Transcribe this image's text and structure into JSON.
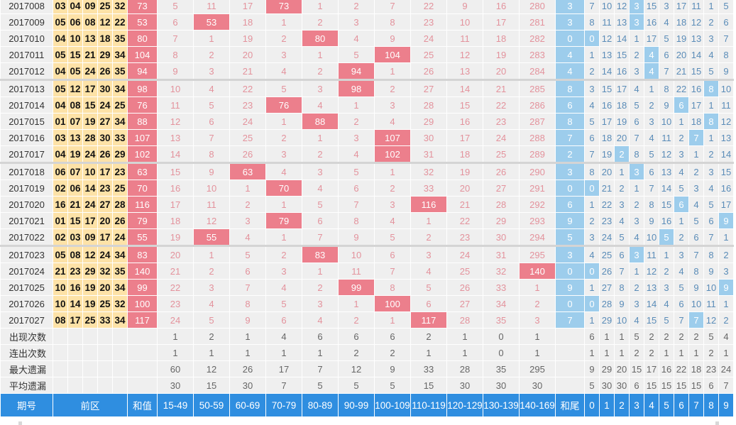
{
  "table": {
    "header": {
      "issue": "期号",
      "front": "前区",
      "sum": "和值",
      "ranges": [
        "15-49",
        "50-59",
        "60-69",
        "70-79",
        "80-89",
        "90-99",
        "100-109",
        "110-119",
        "120-129",
        "130-139",
        "140-169"
      ],
      "tail": "和尾",
      "digits": [
        "0",
        "1",
        "2",
        "3",
        "4",
        "5",
        "6",
        "7",
        "8",
        "9"
      ]
    },
    "rows": [
      {
        "issue": "2017008",
        "balls": [
          "03",
          "04",
          "09",
          "25",
          "32"
        ],
        "sum": "73",
        "ranges": [
          "5",
          "11",
          "17",
          "73",
          "1",
          "2",
          "7",
          "22",
          "9",
          "16",
          "280"
        ],
        "hit_range": 3,
        "tail": "3",
        "digits": [
          "7",
          "10",
          "12",
          "3",
          "15",
          "3",
          "17",
          "11",
          "1",
          "5"
        ],
        "hit_digit": 3
      },
      {
        "issue": "2017009",
        "balls": [
          "05",
          "06",
          "08",
          "12",
          "22"
        ],
        "sum": "53",
        "ranges": [
          "6",
          "53",
          "18",
          "1",
          "2",
          "3",
          "8",
          "23",
          "10",
          "17",
          "281"
        ],
        "hit_range": 1,
        "tail": "3",
        "digits": [
          "8",
          "11",
          "13",
          "3",
          "16",
          "4",
          "18",
          "12",
          "2",
          "6"
        ],
        "hit_digit": 3
      },
      {
        "issue": "2017010",
        "balls": [
          "04",
          "10",
          "13",
          "18",
          "35"
        ],
        "sum": "80",
        "ranges": [
          "7",
          "1",
          "19",
          "2",
          "80",
          "4",
          "9",
          "24",
          "11",
          "18",
          "282"
        ],
        "hit_range": 4,
        "tail": "0",
        "digits": [
          "0",
          "12",
          "14",
          "1",
          "17",
          "5",
          "19",
          "13",
          "3",
          "7"
        ],
        "hit_digit": 0
      },
      {
        "issue": "2017011",
        "balls": [
          "05",
          "15",
          "21",
          "29",
          "34"
        ],
        "sum": "104",
        "ranges": [
          "8",
          "2",
          "20",
          "3",
          "1",
          "5",
          "104",
          "25",
          "12",
          "19",
          "283"
        ],
        "hit_range": 6,
        "tail": "4",
        "digits": [
          "1",
          "13",
          "15",
          "2",
          "4",
          "6",
          "20",
          "14",
          "4",
          "8"
        ],
        "hit_digit": 4
      },
      {
        "issue": "2017012",
        "balls": [
          "04",
          "05",
          "24",
          "26",
          "35"
        ],
        "sum": "94",
        "ranges": [
          "9",
          "3",
          "21",
          "4",
          "2",
          "94",
          "1",
          "26",
          "13",
          "20",
          "284"
        ],
        "hit_range": 5,
        "tail": "4",
        "digits": [
          "2",
          "14",
          "16",
          "3",
          "4",
          "7",
          "21",
          "15",
          "5",
          "9"
        ],
        "hit_digit": 4
      },
      {
        "issue": "2017013",
        "balls": [
          "05",
          "12",
          "17",
          "30",
          "34"
        ],
        "sum": "98",
        "ranges": [
          "10",
          "4",
          "22",
          "5",
          "3",
          "98",
          "2",
          "27",
          "14",
          "21",
          "285"
        ],
        "hit_range": 5,
        "tail": "8",
        "digits": [
          "3",
          "15",
          "17",
          "4",
          "1",
          "8",
          "22",
          "16",
          "8",
          "10"
        ],
        "hit_digit": 8
      },
      {
        "issue": "2017014",
        "balls": [
          "04",
          "08",
          "15",
          "24",
          "25"
        ],
        "sum": "76",
        "ranges": [
          "11",
          "5",
          "23",
          "76",
          "4",
          "1",
          "3",
          "28",
          "15",
          "22",
          "286"
        ],
        "hit_range": 3,
        "tail": "6",
        "digits": [
          "4",
          "16",
          "18",
          "5",
          "2",
          "9",
          "6",
          "17",
          "1",
          "11"
        ],
        "hit_digit": 6
      },
      {
        "issue": "2017015",
        "balls": [
          "01",
          "07",
          "19",
          "27",
          "34"
        ],
        "sum": "88",
        "ranges": [
          "12",
          "6",
          "24",
          "1",
          "88",
          "2",
          "4",
          "29",
          "16",
          "23",
          "287"
        ],
        "hit_range": 4,
        "tail": "8",
        "digits": [
          "5",
          "17",
          "19",
          "6",
          "3",
          "10",
          "1",
          "18",
          "8",
          "12"
        ],
        "hit_digit": 8
      },
      {
        "issue": "2017016",
        "balls": [
          "03",
          "13",
          "28",
          "30",
          "33"
        ],
        "sum": "107",
        "ranges": [
          "13",
          "7",
          "25",
          "2",
          "1",
          "3",
          "107",
          "30",
          "17",
          "24",
          "288"
        ],
        "hit_range": 6,
        "tail": "7",
        "digits": [
          "6",
          "18",
          "20",
          "7",
          "4",
          "11",
          "2",
          "7",
          "1",
          "13"
        ],
        "hit_digit": 7
      },
      {
        "issue": "2017017",
        "balls": [
          "04",
          "19",
          "24",
          "26",
          "29"
        ],
        "sum": "102",
        "ranges": [
          "14",
          "8",
          "26",
          "3",
          "2",
          "4",
          "102",
          "31",
          "18",
          "25",
          "289"
        ],
        "hit_range": 6,
        "tail": "2",
        "digits": [
          "7",
          "19",
          "2",
          "8",
          "5",
          "12",
          "3",
          "1",
          "2",
          "14"
        ],
        "hit_digit": 2
      },
      {
        "issue": "2017018",
        "balls": [
          "06",
          "07",
          "10",
          "17",
          "23"
        ],
        "sum": "63",
        "ranges": [
          "15",
          "9",
          "63",
          "4",
          "3",
          "5",
          "1",
          "32",
          "19",
          "26",
          "290"
        ],
        "hit_range": 2,
        "tail": "3",
        "digits": [
          "8",
          "20",
          "1",
          "3",
          "6",
          "13",
          "4",
          "2",
          "3",
          "15"
        ],
        "hit_digit": 3
      },
      {
        "issue": "2017019",
        "balls": [
          "02",
          "06",
          "14",
          "23",
          "25"
        ],
        "sum": "70",
        "ranges": [
          "16",
          "10",
          "1",
          "70",
          "4",
          "6",
          "2",
          "33",
          "20",
          "27",
          "291"
        ],
        "hit_range": 3,
        "tail": "0",
        "digits": [
          "0",
          "21",
          "2",
          "1",
          "7",
          "14",
          "5",
          "3",
          "4",
          "16"
        ],
        "hit_digit": 0
      },
      {
        "issue": "2017020",
        "balls": [
          "16",
          "21",
          "24",
          "27",
          "28"
        ],
        "sum": "116",
        "ranges": [
          "17",
          "11",
          "2",
          "1",
          "5",
          "7",
          "3",
          "116",
          "21",
          "28",
          "292"
        ],
        "hit_range": 7,
        "tail": "6",
        "digits": [
          "1",
          "22",
          "3",
          "2",
          "8",
          "15",
          "6",
          "4",
          "5",
          "17"
        ],
        "hit_digit": 6
      },
      {
        "issue": "2017021",
        "balls": [
          "01",
          "15",
          "17",
          "20",
          "26"
        ],
        "sum": "79",
        "ranges": [
          "18",
          "12",
          "3",
          "79",
          "6",
          "8",
          "4",
          "1",
          "22",
          "29",
          "293"
        ],
        "hit_range": 3,
        "tail": "9",
        "digits": [
          "2",
          "23",
          "4",
          "3",
          "9",
          "16",
          "1",
          "5",
          "6",
          "9"
        ],
        "hit_digit": 9
      },
      {
        "issue": "2017022",
        "balls": [
          "02",
          "03",
          "09",
          "17",
          "24"
        ],
        "sum": "55",
        "ranges": [
          "19",
          "55",
          "4",
          "1",
          "7",
          "9",
          "5",
          "2",
          "23",
          "30",
          "294"
        ],
        "hit_range": 1,
        "tail": "5",
        "digits": [
          "3",
          "24",
          "5",
          "4",
          "10",
          "5",
          "2",
          "6",
          "7",
          "1"
        ],
        "hit_digit": 5
      },
      {
        "issue": "2017023",
        "balls": [
          "05",
          "08",
          "12",
          "24",
          "34"
        ],
        "sum": "83",
        "ranges": [
          "20",
          "1",
          "5",
          "2",
          "83",
          "10",
          "6",
          "3",
          "24",
          "31",
          "295"
        ],
        "hit_range": 4,
        "tail": "3",
        "digits": [
          "4",
          "25",
          "6",
          "3",
          "11",
          "1",
          "3",
          "7",
          "8",
          "2"
        ],
        "hit_digit": 3
      },
      {
        "issue": "2017024",
        "balls": [
          "21",
          "23",
          "29",
          "32",
          "35"
        ],
        "sum": "140",
        "ranges": [
          "21",
          "2",
          "6",
          "3",
          "1",
          "11",
          "7",
          "4",
          "25",
          "32",
          "140"
        ],
        "hit_range": 10,
        "tail": "0",
        "digits": [
          "0",
          "26",
          "7",
          "1",
          "12",
          "2",
          "4",
          "8",
          "9",
          "3"
        ],
        "hit_digit": 0
      },
      {
        "issue": "2017025",
        "balls": [
          "10",
          "16",
          "19",
          "20",
          "34"
        ],
        "sum": "99",
        "ranges": [
          "22",
          "3",
          "7",
          "4",
          "2",
          "99",
          "8",
          "5",
          "26",
          "33",
          "1"
        ],
        "hit_range": 5,
        "tail": "9",
        "digits": [
          "1",
          "27",
          "8",
          "2",
          "13",
          "3",
          "5",
          "9",
          "10",
          "9"
        ],
        "hit_digit": 9
      },
      {
        "issue": "2017026",
        "balls": [
          "10",
          "14",
          "19",
          "25",
          "32"
        ],
        "sum": "100",
        "ranges": [
          "23",
          "4",
          "8",
          "5",
          "3",
          "1",
          "100",
          "6",
          "27",
          "34",
          "2"
        ],
        "hit_range": 6,
        "tail": "0",
        "digits": [
          "0",
          "28",
          "9",
          "3",
          "14",
          "4",
          "6",
          "10",
          "11",
          "1"
        ],
        "hit_digit": 0
      },
      {
        "issue": "2017027",
        "balls": [
          "08",
          "17",
          "25",
          "33",
          "34"
        ],
        "sum": "117",
        "ranges": [
          "24",
          "5",
          "9",
          "6",
          "4",
          "2",
          "1",
          "117",
          "28",
          "35",
          "3"
        ],
        "hit_range": 7,
        "tail": "7",
        "digits": [
          "1",
          "29",
          "10",
          "4",
          "15",
          "5",
          "7",
          "7",
          "12",
          "2"
        ],
        "hit_digit": 7
      }
    ],
    "stats": [
      {
        "label": "出现次数",
        "ranges": [
          "1",
          "2",
          "1",
          "4",
          "6",
          "6",
          "6",
          "2",
          "1",
          "0",
          "1"
        ],
        "digits": [
          "6",
          "1",
          "1",
          "5",
          "2",
          "2",
          "2",
          "2",
          "5",
          "4"
        ]
      },
      {
        "label": "连出次数",
        "ranges": [
          "1",
          "1",
          "1",
          "1",
          "1",
          "2",
          "2",
          "1",
          "1",
          "0",
          "1"
        ],
        "digits": [
          "1",
          "1",
          "1",
          "2",
          "2",
          "1",
          "1",
          "1",
          "2",
          "1"
        ]
      },
      {
        "label": "最大遗漏",
        "ranges": [
          "60",
          "12",
          "26",
          "17",
          "7",
          "12",
          "9",
          "33",
          "28",
          "35",
          "295"
        ],
        "digits": [
          "9",
          "29",
          "20",
          "15",
          "17",
          "16",
          "22",
          "18",
          "23",
          "24"
        ]
      },
      {
        "label": "平均遗漏",
        "ranges": [
          "30",
          "15",
          "30",
          "7",
          "5",
          "5",
          "5",
          "15",
          "30",
          "30",
          "30"
        ],
        "digits": [
          "5",
          "30",
          "30",
          "6",
          "15",
          "15",
          "15",
          "15",
          "6",
          "7"
        ]
      }
    ]
  },
  "colors": {
    "hit_red": "#ec7f8c",
    "hit_blue": "#9dcdec",
    "ball_bg": "#fde2a7",
    "header_blue": "#2f8ee0",
    "cell_bg": "#efefef"
  }
}
